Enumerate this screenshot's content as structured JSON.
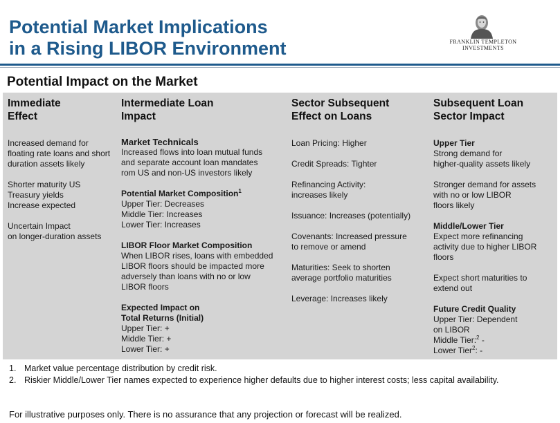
{
  "header": {
    "title_line1": "Potential Market Implications",
    "title_line2": "in a Rising LIBOR Environment",
    "logo_line1": "FRANKLIN TEMPLETON",
    "logo_line2": "INVESTMENTS",
    "logo_icon": "franklin-portrait-icon"
  },
  "section_title": "Potential Impact on the Market",
  "columns": [
    {
      "heading": [
        "Immediate",
        "Effect"
      ],
      "blocks": [
        {
          "lines": [
            "Increased demand for",
            "floating rate loans and short",
            "duration assets likely"
          ]
        },
        {
          "lines": [
            "Shorter maturity US",
            "Treasury yields",
            "Increase expected"
          ]
        },
        {
          "lines": [
            "Uncertain Impact",
            "on longer-duration assets"
          ]
        }
      ]
    },
    {
      "heading": [
        "Intermediate Loan",
        "Impact"
      ],
      "blocks": [
        {
          "title": "Market Technicals",
          "lines": [
            "Increased flows into loan mutual funds",
            "and separate account loan mandates",
            "rom US and non-US investors likely"
          ]
        },
        {
          "title": "Potential Market Composition",
          "title_sup": "1",
          "lines": [
            "Upper Tier: Decreases",
            "Middle Tier: Increases",
            "Lower Tier: Increases"
          ]
        },
        {
          "title": "LIBOR Floor Market Composition",
          "lines": [
            "When LIBOR rises, loans with embedded",
            "LIBOR floors should be impacted more",
            "adversely than loans with no or low",
            "LIBOR floors"
          ]
        },
        {
          "title_lines": [
            "Expected Impact on",
            "Total Returns (Initial)"
          ],
          "lines": [
            "Upper Tier: +",
            "Middle Tier: +",
            "Lower Tier: +"
          ]
        }
      ]
    },
    {
      "heading": [
        "Sector Subsequent",
        "Effect on Loans"
      ],
      "blocks": [
        {
          "lines": [
            "Loan Pricing: Higher"
          ]
        },
        {
          "lines": [
            "Credit Spreads: Tighter"
          ]
        },
        {
          "lines": [
            "Refinancing Activity:",
            "increases likely"
          ]
        },
        {
          "lines": [
            "Issuance: Increases (potentially)"
          ]
        },
        {
          "lines": [
            "Covenants: Increased pressure",
            "to remove or amend"
          ]
        },
        {
          "lines": [
            "Maturities: Seek to shorten",
            "average  portfolio maturities"
          ]
        },
        {
          "lines": [
            "Leverage: Increases likely"
          ]
        }
      ]
    },
    {
      "heading": [
        "Subsequent Loan",
        "Sector Impact"
      ],
      "blocks": [
        {
          "title": "Upper Tier",
          "lines": [
            "Strong demand for",
            "higher-quality assets likely"
          ]
        },
        {
          "lines": [
            "Stronger demand for assets",
            "with no or low LIBOR",
            "floors likely"
          ]
        },
        {
          "title": "Middle/Lower Tier",
          "lines": [
            "Expect more refinancing",
            "activity due to higher LIBOR",
            "floors"
          ]
        },
        {
          "lines": [
            "Expect short maturities to",
            "extend out"
          ]
        },
        {
          "title": "Future Credit Quality",
          "lines": [
            "Upper Tier: Dependent",
            "on LIBOR"
          ],
          "sup_lines": [
            {
              "pre": "Middle Tier:",
              "sup": "2",
              "post": " -"
            },
            {
              "pre": "Lower Tier",
              "sup": "2",
              "post": ": -"
            }
          ]
        }
      ]
    }
  ],
  "footnotes": [
    {
      "num": "1.",
      "text": "Market value percentage distribution by credit risk."
    },
    {
      "num": "2.",
      "text": "Riskier Middle/Lower Tier names expected to experience higher defaults due to higher interest costs; less capital availability."
    }
  ],
  "disclaimer": "For illustrative purposes only. There is no assurance that any projection or forecast will be realized."
}
